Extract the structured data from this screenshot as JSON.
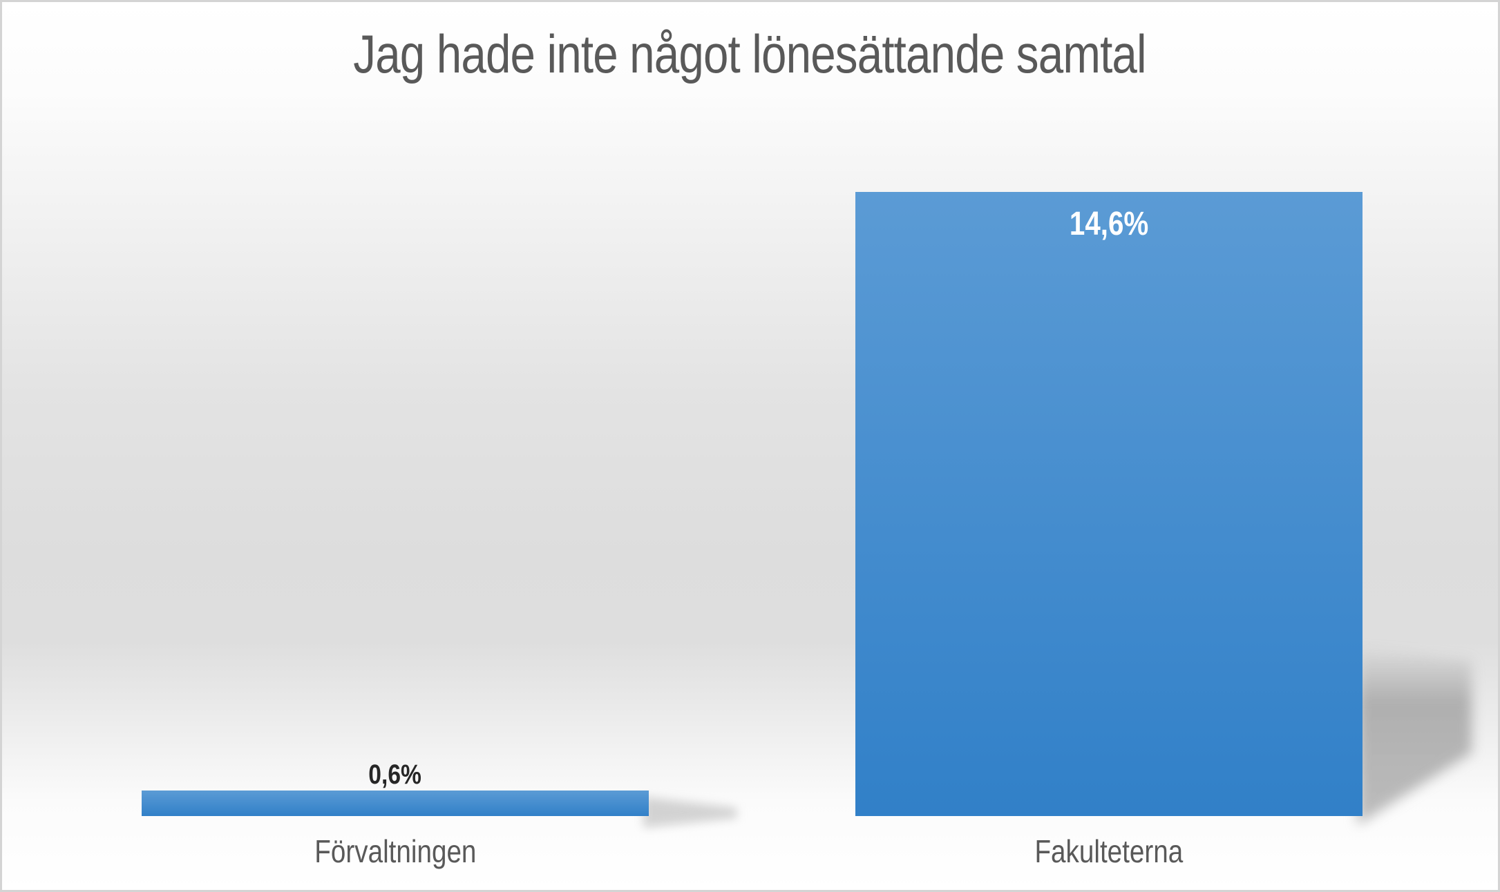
{
  "slide": {
    "border_color": "#d4d4d4",
    "background_mid_color": "#dedede"
  },
  "chart_data": {
    "type": "bar",
    "title": "Jag hade inte något lönesättande samtal",
    "categories": [
      "Förvaltningen",
      "Fakulteterna"
    ],
    "values": [
      0.6,
      14.6
    ],
    "value_labels": [
      "0,6%",
      "14,6%"
    ],
    "unit": "%",
    "ylim": [
      0,
      14.6
    ],
    "xlabel": "",
    "ylabel": "",
    "grid": false,
    "legend": false,
    "colors": {
      "bar_gradient_top": "#5b9bd5",
      "bar_gradient_bottom": "#3180c8",
      "value_label_outside": "#262626",
      "value_label_inside": "#ffffff",
      "category_label": "#595959",
      "title": "#595959"
    }
  }
}
